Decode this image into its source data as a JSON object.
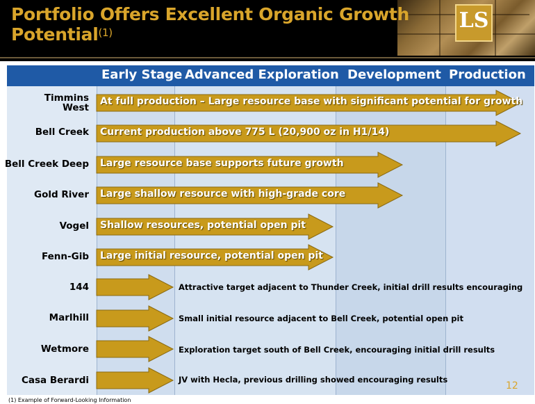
{
  "title": {
    "line1": "Portfolio Offers Excellent Organic Growth",
    "line2": "Potential",
    "footnote_ref": "(1)"
  },
  "logo_text": "LS",
  "colors": {
    "gold": "#d9a52b",
    "arrow_fill": "#c89a1c",
    "header_blue": "#1f5aa6"
  },
  "columns": [
    "Early Stage",
    "Advanced Exploration",
    "Development",
    "Production"
  ],
  "rows": [
    {
      "label_line1": "Timmins",
      "label_line2": "West",
      "text": "At full production – Large resource base with significant potential for growth",
      "stage": "production"
    },
    {
      "label_line1": "Bell Creek",
      "label_line2": "",
      "text": "Current production above 775 L (20,900 oz in H1/14)",
      "stage": "production"
    },
    {
      "label_line1": "Bell Creek Deep",
      "label_line2": "",
      "text": "Large resource base supports future growth",
      "stage": "development"
    },
    {
      "label_line1": "Gold River",
      "label_line2": "",
      "text": "Large shallow resource with high-grade core",
      "stage": "development"
    },
    {
      "label_line1": "Vogel",
      "label_line2": "",
      "text": "Shallow resources, potential open pit",
      "stage": "advanced"
    },
    {
      "label_line1": "Fenn-Gib",
      "label_line2": "",
      "text": "Large initial resource, potential open pit",
      "stage": "advanced"
    },
    {
      "label_line1": "144",
      "label_line2": "",
      "text": "Attractive target adjacent to Thunder Creek,  initial drill results encouraging",
      "stage": "early"
    },
    {
      "label_line1": "Marlhill",
      "label_line2": "",
      "text": "Small initial resource adjacent to Bell Creek, potential open pit",
      "stage": "early"
    },
    {
      "label_line1": "Wetmore",
      "label_line2": "",
      "text": "Exploration target south of Bell Creek, encouraging initial drill results",
      "stage": "early"
    },
    {
      "label_line1": "Casa Berardi",
      "label_line2": "",
      "text": "JV with Hecla, previous drilling showed encouraging results",
      "stage": "early"
    }
  ],
  "page_number": "12",
  "footnote": "(1)    Example of Forward-Looking Information"
}
